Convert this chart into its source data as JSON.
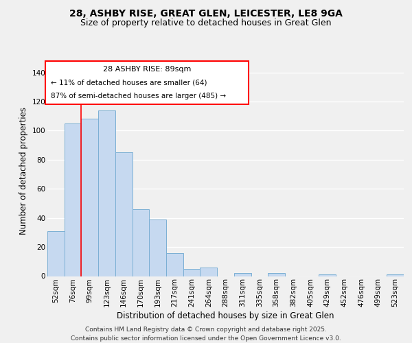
{
  "title": "28, ASHBY RISE, GREAT GLEN, LEICESTER, LE8 9GA",
  "subtitle": "Size of property relative to detached houses in Great Glen",
  "xlabel": "Distribution of detached houses by size in Great Glen",
  "ylabel": "Number of detached properties",
  "categories": [
    "52sqm",
    "76sqm",
    "99sqm",
    "123sqm",
    "146sqm",
    "170sqm",
    "193sqm",
    "217sqm",
    "241sqm",
    "264sqm",
    "288sqm",
    "311sqm",
    "335sqm",
    "358sqm",
    "382sqm",
    "405sqm",
    "429sqm",
    "452sqm",
    "476sqm",
    "499sqm",
    "523sqm"
  ],
  "values": [
    31,
    105,
    108,
    114,
    85,
    46,
    39,
    16,
    5,
    6,
    0,
    2,
    0,
    2,
    0,
    0,
    1,
    0,
    0,
    0,
    1
  ],
  "bar_color": "#c6d9f0",
  "bar_edge_color": "#7bafd4",
  "background_color": "#f0f0f0",
  "grid_color": "#ffffff",
  "property_line_label": "28 ASHBY RISE: 89sqm",
  "annotation_line1": "← 11% of detached houses are smaller (64)",
  "annotation_line2": "87% of semi-detached houses are larger (485) →",
  "ylim": [
    0,
    145
  ],
  "yticks": [
    0,
    20,
    40,
    60,
    80,
    100,
    120,
    140
  ],
  "footnote1": "Contains HM Land Registry data © Crown copyright and database right 2025.",
  "footnote2": "Contains public sector information licensed under the Open Government Licence v3.0.",
  "title_fontsize": 10,
  "subtitle_fontsize": 9,
  "xlabel_fontsize": 8.5,
  "ylabel_fontsize": 8.5,
  "tick_fontsize": 7.5,
  "annotation_fontsize": 8,
  "footnote_fontsize": 6.5
}
